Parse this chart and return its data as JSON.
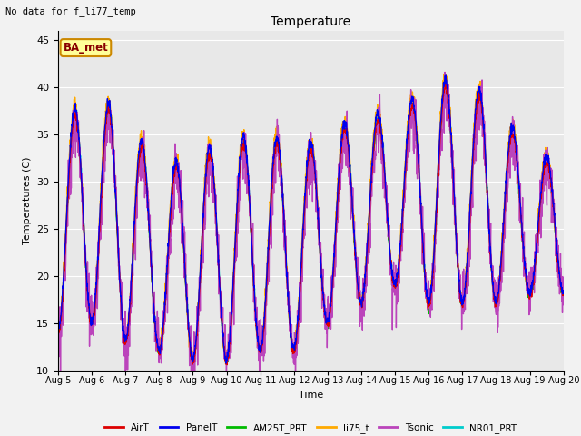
{
  "title": "Temperature",
  "xlabel": "Time",
  "ylabel": "Temperatures (C)",
  "note": "No data for f_li77_temp",
  "ba_met_label": "BA_met",
  "ylim": [
    10,
    46
  ],
  "yticks": [
    10,
    15,
    20,
    25,
    30,
    35,
    40,
    45
  ],
  "series_order": [
    "NR01_PRT",
    "AM25T_PRT",
    "li75_t",
    "Tsonic",
    "AirT",
    "PanelT"
  ],
  "series": {
    "AirT": {
      "color": "#dd0000",
      "lw": 1.0
    },
    "PanelT": {
      "color": "#0000ee",
      "lw": 1.0
    },
    "AM25T_PRT": {
      "color": "#00bb00",
      "lw": 1.0
    },
    "li75_t": {
      "color": "#ffaa00",
      "lw": 1.0
    },
    "Tsonic": {
      "color": "#bb44bb",
      "lw": 1.0
    },
    "NR01_PRT": {
      "color": "#00cccc",
      "lw": 1.2
    }
  },
  "legend_order": [
    "AirT",
    "PanelT",
    "AM25T_PRT",
    "li75_t",
    "Tsonic",
    "NR01_PRT"
  ],
  "xtick_labels": [
    "Aug 5",
    "Aug 6",
    "Aug 7",
    "Aug 8",
    "Aug 9",
    "Aug 10",
    "Aug 11",
    "Aug 12",
    "Aug 13",
    "Aug 14",
    "Aug 15",
    "Aug 16",
    "Aug 17",
    "Aug 18",
    "Aug 19",
    "Aug 20"
  ],
  "bg_color": "#e8e8e8",
  "fig_bg": "#f2f2f2",
  "grid_color": "#ffffff",
  "legend_bg": "#ffff99",
  "legend_border": "#cc8800",
  "day_max": [
    36,
    38,
    37,
    30,
    33,
    33,
    35,
    33,
    34,
    37,
    36,
    40,
    40,
    38,
    32
  ],
  "day_min": [
    14,
    15,
    13,
    12,
    11,
    11,
    12,
    12,
    15,
    17,
    19,
    17,
    17,
    17,
    18
  ]
}
